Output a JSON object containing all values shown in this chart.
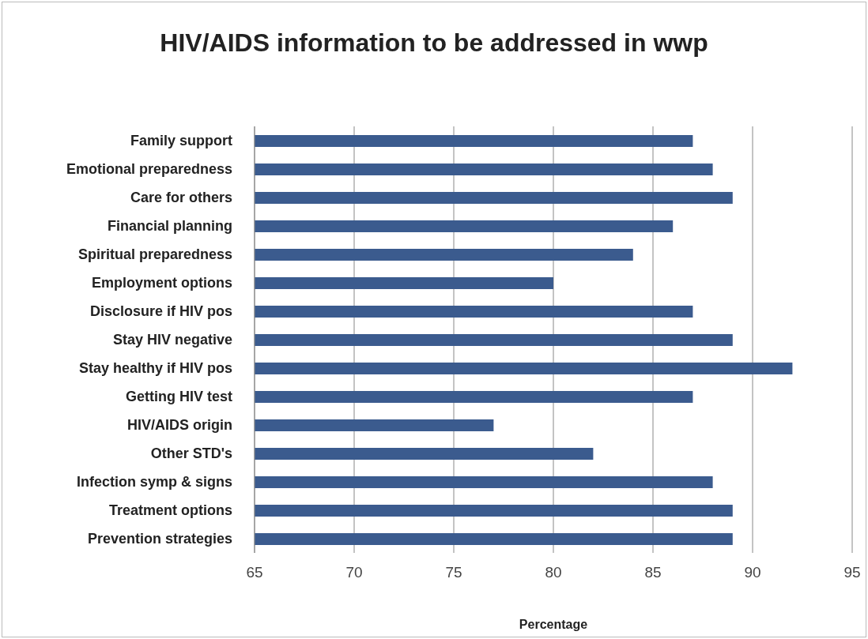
{
  "chart_data": {
    "type": "bar",
    "orientation": "horizontal",
    "title": "HIV/AIDS information to be addressed in wwp",
    "xlabel": "Percentage",
    "categories": [
      "Family support",
      "Emotional preparedness",
      "Care for others",
      "Financial planning",
      "Spiritual preparedness",
      "Employment options",
      "Disclosure if HIV pos",
      "Stay HIV negative",
      "Stay healthy if HIV pos",
      "Getting HIV test",
      "HIV/AIDS origin",
      "Other STD's",
      "Infection symp & signs",
      "Treatment options",
      "Prevention strategies"
    ],
    "values": [
      87,
      88,
      89,
      86,
      84,
      80,
      87,
      89,
      92,
      87,
      77,
      82,
      88,
      89,
      89
    ],
    "color": "#3b5b8e",
    "xlim": [
      65,
      95
    ],
    "xticks": [
      65,
      70,
      75,
      80,
      85,
      90,
      95
    ],
    "grid": "x",
    "legend": false
  }
}
